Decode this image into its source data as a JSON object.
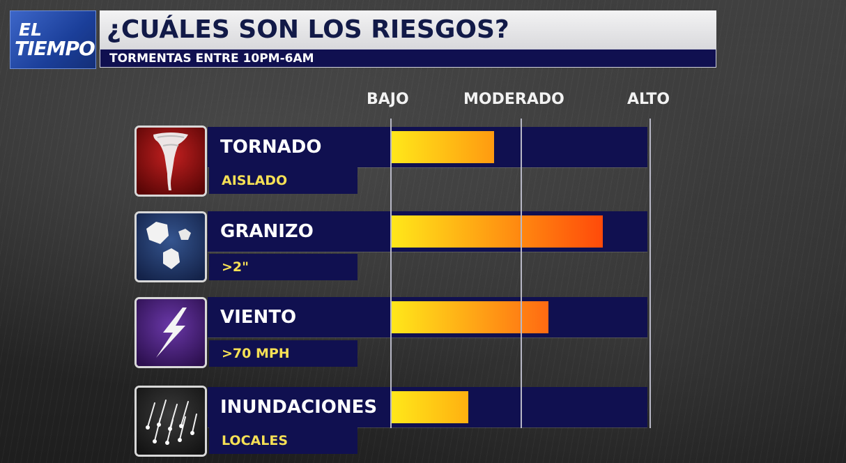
{
  "logo": {
    "line1": "EL",
    "line2": "TIEMPO"
  },
  "header": {
    "title": "¿CUÁLES SON LOS RIESGOS?",
    "subtitle": "TORMENTAS ENTRE 10PM-6AM"
  },
  "scale": {
    "low": "BAJO",
    "moderate": "MODERADO",
    "high": "ALTO"
  },
  "risks": [
    {
      "name": "TORNADO",
      "detail": "AISLADO",
      "icon": "tornado-icon",
      "level": 0.4,
      "color_end": "#ff9a10"
    },
    {
      "name": "GRANIZO",
      "detail": ">2\"",
      "icon": "hail-icon",
      "level": 0.82,
      "color_end": "#ff4a0a"
    },
    {
      "name": "VIENTO",
      "detail": ">70 MPH",
      "icon": "lightning-icon",
      "level": 0.61,
      "color_end": "#ff6a12"
    },
    {
      "name": "INUNDACIONES",
      "detail": "LOCALES",
      "icon": "rain-icon",
      "level": 0.3,
      "color_end": "#ffb010"
    }
  ],
  "colors": {
    "bar_bg": "#101050",
    "fill_start": "#ffe81a",
    "detail_text": "#f6e055",
    "tornado_tile": "#7a0c0c",
    "hail_tile": "#1f3566",
    "wind_tile": "#4c2380",
    "rain_tile": "#2b2b2b"
  }
}
